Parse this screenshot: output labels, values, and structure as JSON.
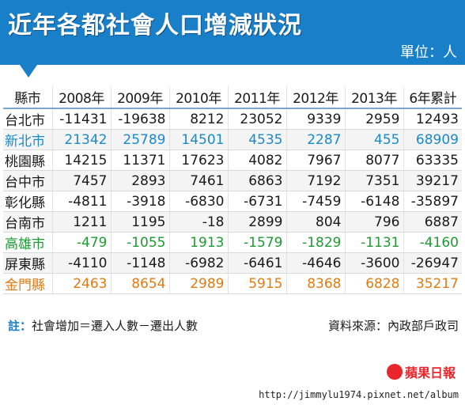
{
  "title": "近年各都社會人口增減狀況",
  "unit": "單位：人",
  "chart_data": {
    "type": "table",
    "columns": [
      "縣市",
      "2008年",
      "2009年",
      "2010年",
      "2011年",
      "2012年",
      "2013年",
      "6年累計"
    ],
    "rows": [
      {
        "name": "台北市",
        "values": [
          "-11431",
          "-19638",
          "8212",
          "23052",
          "9339",
          "2959",
          "12493"
        ],
        "color": "default"
      },
      {
        "name": "新北市",
        "values": [
          "21342",
          "25789",
          "14501",
          "4535",
          "2287",
          "455",
          "68909"
        ],
        "color": "blue"
      },
      {
        "name": "桃園縣",
        "values": [
          "14215",
          "11371",
          "17623",
          "4082",
          "7967",
          "8077",
          "63335"
        ],
        "color": "default"
      },
      {
        "name": "台中市",
        "values": [
          "7457",
          "2893",
          "7461",
          "6863",
          "7192",
          "7351",
          "39217"
        ],
        "color": "default"
      },
      {
        "name": "彰化縣",
        "values": [
          "-4811",
          "-3918",
          "-6830",
          "-6731",
          "-7459",
          "-6148",
          "-35897"
        ],
        "color": "default"
      },
      {
        "name": "台南市",
        "values": [
          "1211",
          "1195",
          "-18",
          "2899",
          "804",
          "796",
          "6887"
        ],
        "color": "default"
      },
      {
        "name": "高雄市",
        "values": [
          "-479",
          "-1055",
          "1913",
          "-1579",
          "-1829",
          "-1131",
          "-4160"
        ],
        "color": "green"
      },
      {
        "name": "屏東縣",
        "values": [
          "-4110",
          "-1148",
          "-6982",
          "-6461",
          "-4646",
          "-3600",
          "-26947"
        ],
        "color": "default"
      },
      {
        "name": "金門縣",
        "values": [
          "2463",
          "8654",
          "2989",
          "5915",
          "8368",
          "6828",
          "35217"
        ],
        "color": "orange"
      }
    ]
  },
  "note": {
    "label": "註：",
    "text": "社會增加＝遷入人數－遷出人數"
  },
  "source": "資料來源：內政部戶政司",
  "logo": "蘋果日報",
  "url": "http://jimmylu1974.pixnet.net/album",
  "colors": {
    "header": "#1a7fc9",
    "blue": "#1a8ac8",
    "green": "#1f9a33",
    "orange": "#e07a12",
    "logo": "#e8262b"
  }
}
